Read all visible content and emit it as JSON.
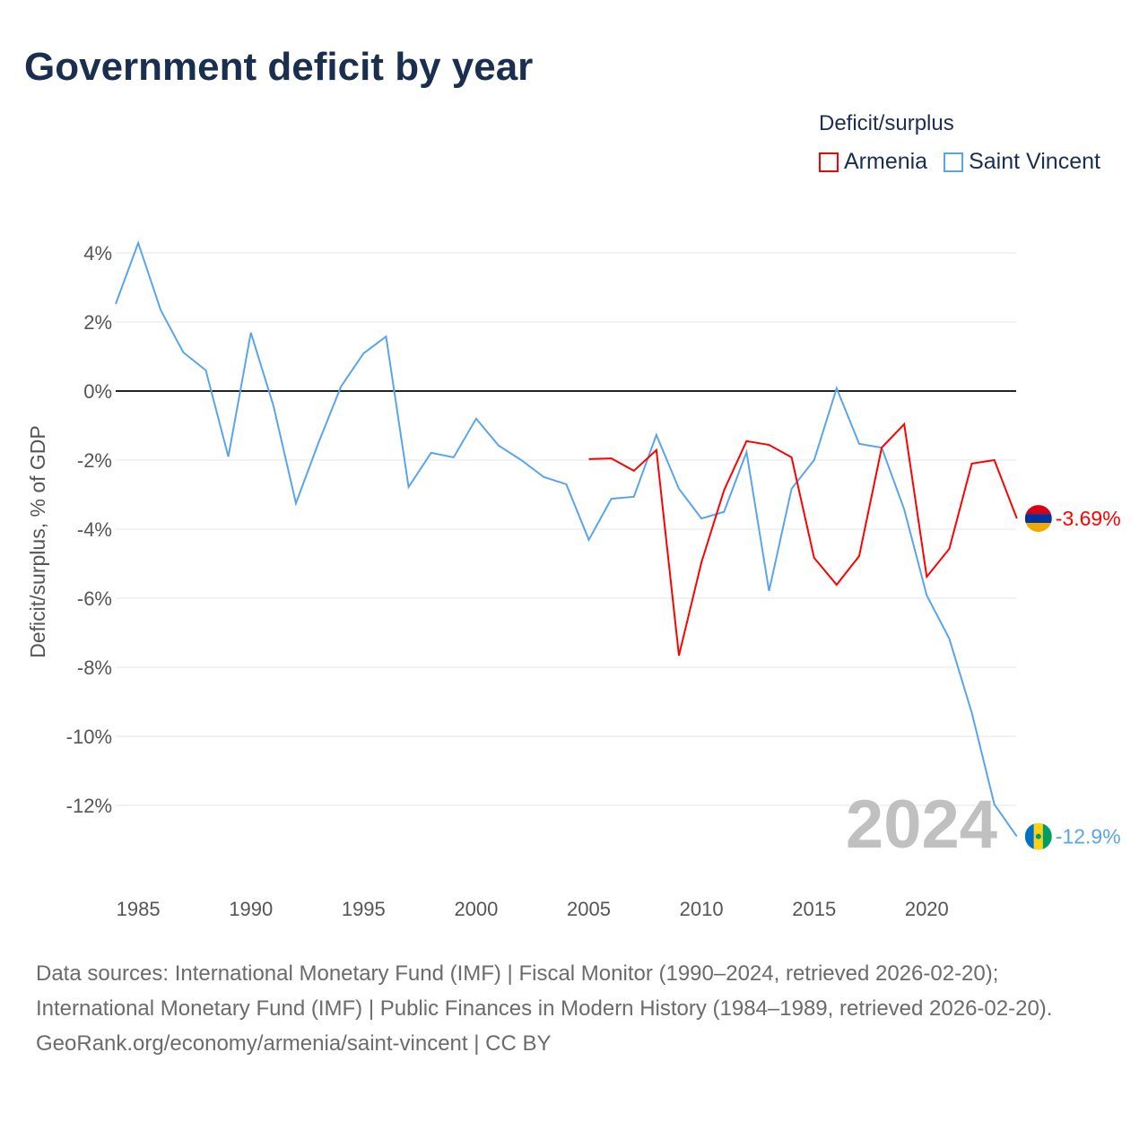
{
  "title": "Government deficit by year",
  "legend": {
    "title": "Deficit/surplus",
    "items": [
      {
        "name": "Armenia",
        "color": "#ff0000"
      },
      {
        "name": "Saint Vincent",
        "color": "#5aa5ea"
      }
    ]
  },
  "chart_data": {
    "type": "line",
    "title": "Government deficit by year",
    "ylabel": "Deficit/surplus, % of GDP",
    "xlabel": "",
    "ylim": [
      -13,
      4.5
    ],
    "xlim": [
      1984,
      2024
    ],
    "yticks": [
      "4%",
      "2%",
      "0%",
      "-2%",
      "-4%",
      "-6%",
      "-8%",
      "-10%",
      "-12%"
    ],
    "ytick_values": [
      4,
      2,
      0,
      -2,
      -4,
      -6,
      -8,
      -10,
      -12
    ],
    "xticks": [
      "1985",
      "1990",
      "1995",
      "2000",
      "2005",
      "2010",
      "2015",
      "2020"
    ],
    "xtick_values": [
      1985,
      1990,
      1995,
      2000,
      2005,
      2010,
      2015,
      2020
    ],
    "year_label": "2024",
    "series": [
      {
        "name": "Saint Vincent",
        "color": "#5aa5ea",
        "end_label": "-12.9%",
        "x": [
          1984,
          1985,
          1986,
          1987,
          1988,
          1989,
          1990,
          1991,
          1992,
          1993,
          1994,
          1995,
          1996,
          1997,
          1998,
          1999,
          2000,
          2001,
          2002,
          2003,
          2004,
          2005,
          2006,
          2007,
          2008,
          2009,
          2010,
          2011,
          2012,
          2013,
          2014,
          2015,
          2016,
          2017,
          2018,
          2019,
          2020,
          2021,
          2022,
          2023,
          2024
        ],
        "values": [
          2.52,
          4.29,
          2.34,
          1.12,
          0.6,
          -1.9,
          1.69,
          -0.42,
          -3.25,
          -1.5,
          0.13,
          1.09,
          1.58,
          -2.78,
          -1.79,
          -1.92,
          -0.8,
          -1.58,
          -2.0,
          -2.49,
          -2.7,
          -4.31,
          -3.12,
          -3.06,
          -1.27,
          -2.83,
          -3.69,
          -3.5,
          -1.77,
          -5.79,
          -2.83,
          -2.0,
          0.08,
          -1.53,
          -1.64,
          -3.43,
          -5.92,
          -7.17,
          -9.32,
          -11.97,
          -12.9
        ]
      },
      {
        "name": "Armenia",
        "color": "#ff0000",
        "end_label": "-3.69%",
        "x": [
          2005,
          2006,
          2007,
          2008,
          2009,
          2010,
          2011,
          2012,
          2013,
          2014,
          2015,
          2016,
          2017,
          2018,
          2019,
          2020,
          2021,
          2022,
          2023,
          2024
        ],
        "values": [
          -1.97,
          -1.95,
          -2.31,
          -1.71,
          -7.66,
          -4.96,
          -2.88,
          -1.45,
          -1.56,
          -1.92,
          -4.83,
          -5.61,
          -4.78,
          -1.64,
          -0.96,
          -5.38,
          -4.57,
          -2.1,
          -2.0,
          -3.69
        ]
      }
    ]
  },
  "sources": {
    "line1": "Data sources: International Monetary Fund (IMF) | Fiscal Monitor (1990–2024, retrieved 2026-02-20); International Monetary Fund (IMF) | Public Finances in Modern History (1984–1989, retrieved 2026-02-20).",
    "line2": "GeoRank.org/economy/armenia/saint-vincent | CC BY"
  }
}
